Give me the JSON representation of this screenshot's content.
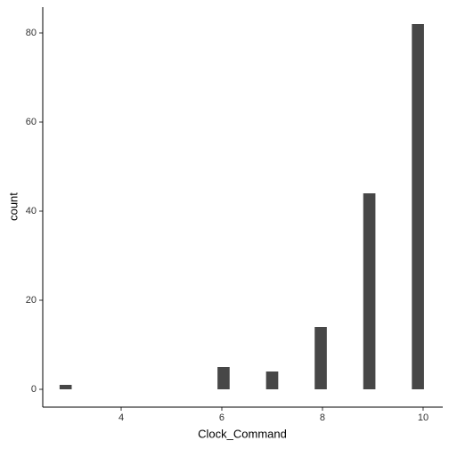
{
  "chart_data": {
    "type": "histogram",
    "x_label": "Clock_Command",
    "y_label": "count",
    "bins": [
      2.776,
      3.017,
      3.259,
      3.5,
      3.741,
      3.983,
      4.224,
      4.466,
      4.707,
      4.948,
      5.19,
      5.431,
      5.672,
      5.914,
      6.155,
      6.397,
      6.638,
      6.879,
      7.121,
      7.362,
      7.603,
      7.845,
      8.086,
      8.328,
      8.569,
      8.81,
      9.052,
      9.293,
      9.534,
      9.776,
      10.017
    ],
    "values": [
      1,
      0,
      0,
      0,
      0,
      0,
      0,
      0,
      0,
      0,
      0,
      0,
      0,
      5,
      0,
      0,
      0,
      4,
      0,
      0,
      0,
      14,
      0,
      0,
      0,
      44,
      0,
      0,
      0,
      82
    ],
    "color": "#474747",
    "xlim": [
      2.442,
      10.39
    ],
    "xticks": [
      4,
      6,
      8,
      10
    ],
    "ylim": [
      -4.0,
      85.8
    ],
    "yticks": [
      0,
      20,
      40,
      60,
      80
    ],
    "grid": false
  }
}
